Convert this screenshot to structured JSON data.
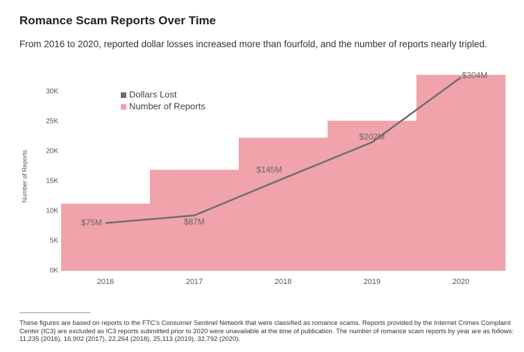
{
  "chart_data": {
    "type": "bar",
    "title": "Romance Scam Reports Over Time",
    "subtitle": "From 2016 to 2020, reported dollar losses increased more than fourfold, and the number of reports nearly tripled.",
    "y_label": "Number of Reports",
    "categories": [
      "2016",
      "2017",
      "2018",
      "2019",
      "2020"
    ],
    "series": [
      {
        "name": "Dollars Lost",
        "type": "line",
        "axis": "y2",
        "color": "#6d6d6d",
        "values": [
          75,
          87,
          145,
          202,
          304
        ],
        "value_labels": [
          "$75M",
          "$87M",
          "$145M",
          "$202M",
          "$304M"
        ]
      },
      {
        "name": "Number of Reports",
        "type": "bar",
        "color": "#f0a3aa",
        "values": [
          11235,
          16902,
          22264,
          25113,
          32792
        ]
      }
    ],
    "ylim": [
      0,
      33000
    ],
    "yticks": [
      {
        "value": 0,
        "label": "0K"
      },
      {
        "value": 5000,
        "label": "5K"
      },
      {
        "value": 10000,
        "label": "10K"
      },
      {
        "value": 15000,
        "label": "15K"
      },
      {
        "value": 20000,
        "label": "20K"
      },
      {
        "value": 25000,
        "label": "25K"
      },
      {
        "value": 30000,
        "label": "30K"
      }
    ],
    "y2lim": [
      0,
      310
    ],
    "legend": "upper left",
    "footnote": "These figures are based on reports to the FTC's Consumer Sentinel Network that were classified as romance scams. Reports provided by the Internet Crimes Complaint Center (IC3) are excluded as IC3 reports submitted prior to 2020 were unavailable at the time of publication. The number of romance scam reports by year are as follows: 11,235 (2016), 16,902 (2017), 22,264 (2018), 25,113 (2019), 32,792 (2020)."
  }
}
